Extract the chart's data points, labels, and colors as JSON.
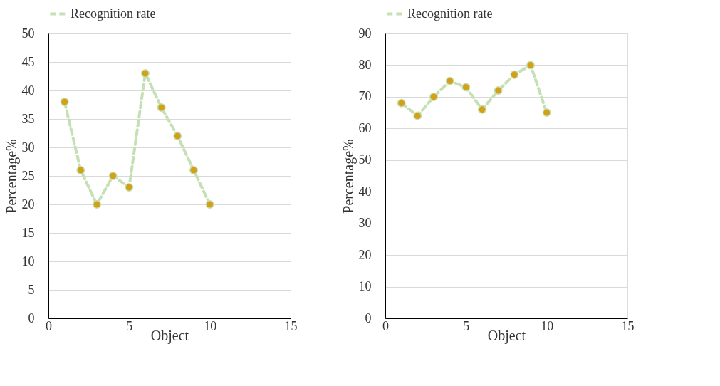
{
  "chart_data": [
    {
      "type": "line",
      "xlabel": "Object",
      "ylabel": "Percentage%",
      "x": [
        1,
        2,
        3,
        4,
        5,
        6,
        7,
        8,
        9,
        10
      ],
      "xlim": [
        0,
        15
      ],
      "xticks": [
        0,
        5,
        10,
        15
      ],
      "ylim": [
        0,
        50
      ],
      "yticks": [
        0,
        5,
        10,
        15,
        20,
        25,
        30,
        35,
        40,
        45,
        50
      ],
      "grid": "y",
      "legend": "top",
      "marker": "circle",
      "line_style": "dashed",
      "series": [
        {
          "name": "Recognition rate",
          "color": "#c5e0b4",
          "values": [
            38,
            26,
            20,
            25,
            23,
            43,
            37,
            32,
            26,
            20
          ]
        }
      ]
    },
    {
      "type": "line",
      "xlabel": "Object",
      "ylabel": "Percentage%",
      "x": [
        1,
        2,
        3,
        4,
        5,
        6,
        7,
        8,
        9,
        10
      ],
      "xlim": [
        0,
        15
      ],
      "xticks": [
        0,
        5,
        10,
        15
      ],
      "ylim": [
        0,
        90
      ],
      "yticks": [
        0,
        10,
        20,
        30,
        40,
        50,
        60,
        70,
        80,
        90
      ],
      "grid": "y",
      "legend": "top",
      "marker": "circle",
      "line_style": "dashed",
      "series": [
        {
          "name": "Recognition rate",
          "color": "#c5e0b4",
          "values": [
            68,
            64,
            70,
            75,
            73,
            66,
            72,
            77,
            80,
            65
          ]
        }
      ]
    }
  ]
}
